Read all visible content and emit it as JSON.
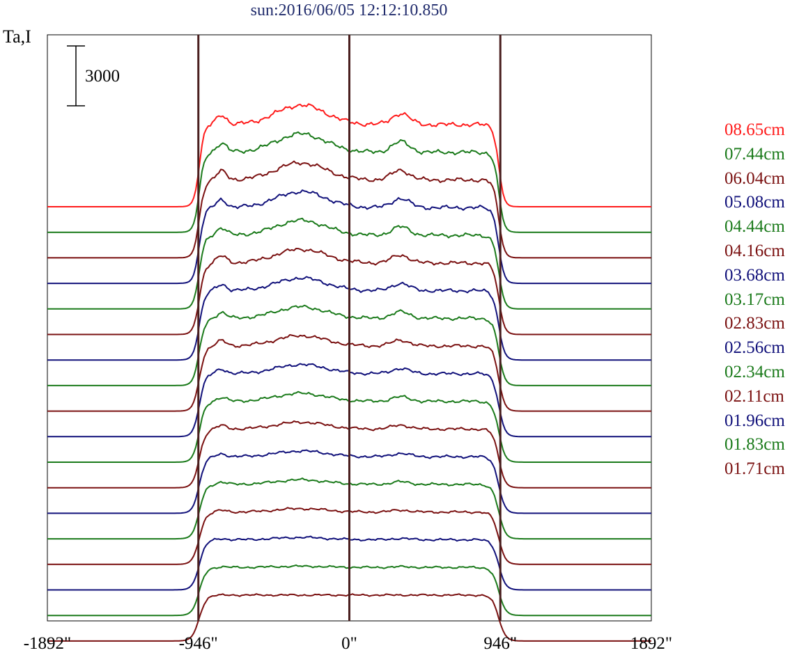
{
  "title": "sun:2016/06/05 12:12:10.850",
  "ylabel": "Ta,I",
  "scale_bar_label": "3000",
  "chart_data": {
    "type": "line",
    "title": "sun:2016/06/05 12:12:10.850",
    "ylabel": "Ta,I",
    "xlabel": "",
    "xlim": [
      -1892,
      1892
    ],
    "x_ticks": [
      "-1892\"",
      "-946\"",
      "0\"",
      "946\"",
      "1892\""
    ],
    "x_tick_values": [
      -1892,
      -946,
      0,
      946,
      1892
    ],
    "vertical_lines": [
      -946,
      0,
      946
    ],
    "scale_bar": 3000,
    "grid": false,
    "legend_position": "right",
    "series": [
      {
        "name": "08.65cm",
        "color": "#ff1a1a"
      },
      {
        "name": "07.44cm",
        "color": "#1a7a1a"
      },
      {
        "name": "06.04cm",
        "color": "#7a1010"
      },
      {
        "name": "05.08cm",
        "color": "#10107a"
      },
      {
        "name": "04.44cm",
        "color": "#1a7a1a"
      },
      {
        "name": "04.16cm",
        "color": "#7a1010"
      },
      {
        "name": "03.68cm",
        "color": "#10107a"
      },
      {
        "name": "03.17cm",
        "color": "#1a7a1a"
      },
      {
        "name": "02.83cm",
        "color": "#7a1010"
      },
      {
        "name": "02.56cm",
        "color": "#10107a"
      },
      {
        "name": "02.34cm",
        "color": "#1a7a1a"
      },
      {
        "name": "02.11cm",
        "color": "#7a1010"
      },
      {
        "name": "01.96cm",
        "color": "#10107a"
      },
      {
        "name": "01.83cm",
        "color": "#1a7a1a"
      },
      {
        "name": "01.71cm",
        "color": "#7a1010"
      },
      {
        "color": "#10107a"
      },
      {
        "color": "#1a7a1a"
      },
      {
        "color": "#7a1010"
      }
    ]
  }
}
